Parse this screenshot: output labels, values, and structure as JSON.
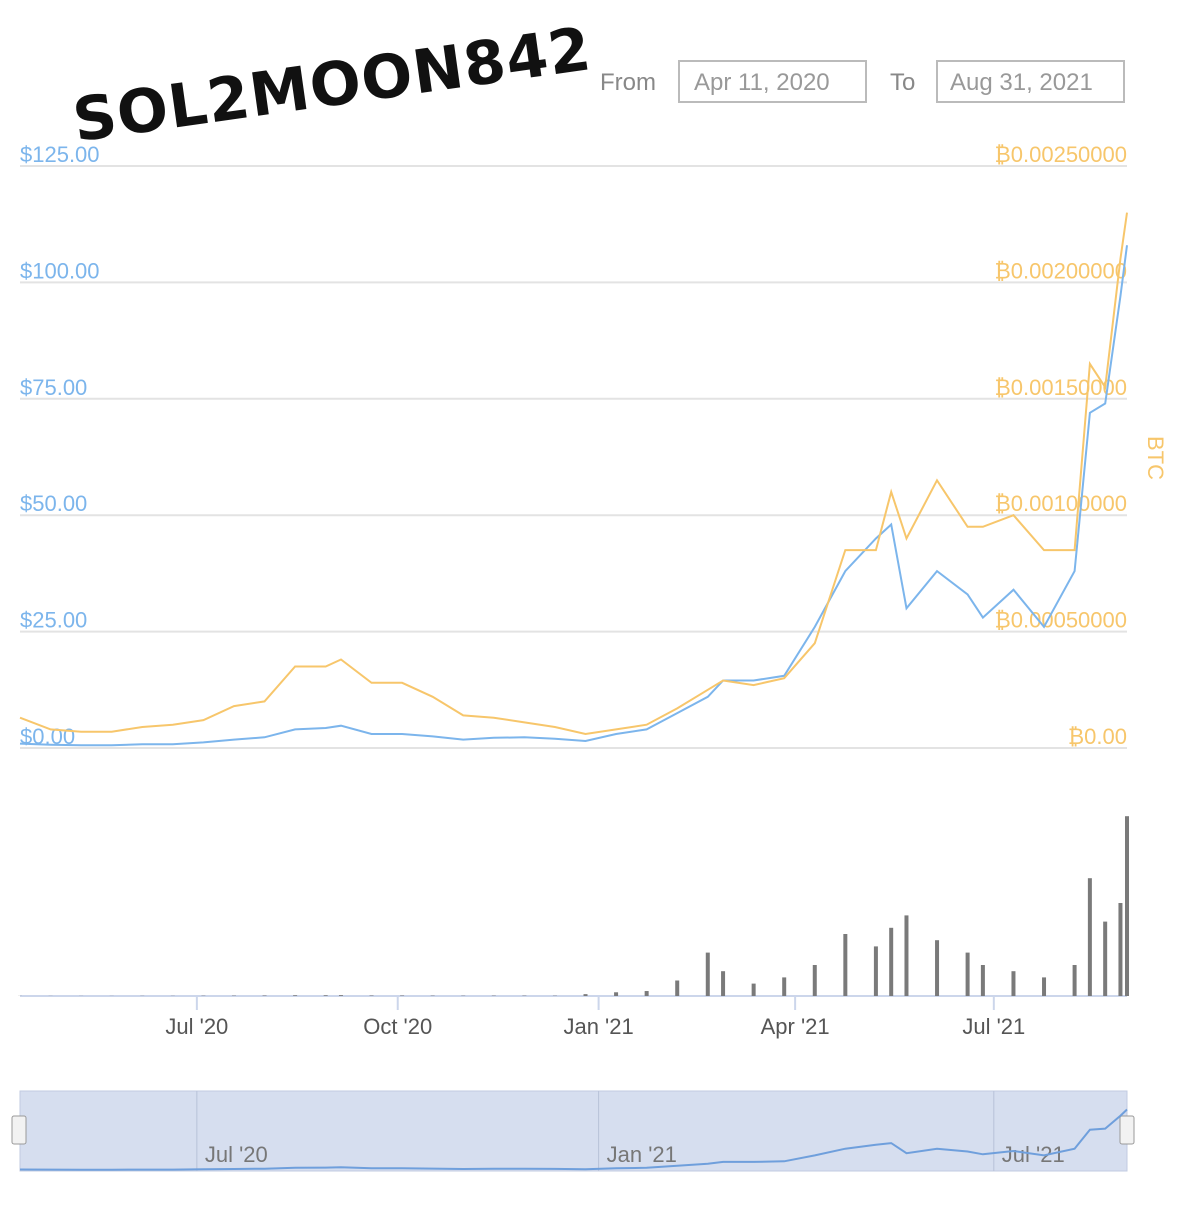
{
  "watermark": "SOL2MOON842",
  "controls": {
    "from_label": "From",
    "from_value": "Apr 11, 2020",
    "to_label": "To",
    "to_value": "Aug 31, 2021"
  },
  "chart_data": {
    "type": "line",
    "x": [
      "2020-04-11",
      "2020-04-25",
      "2020-05-09",
      "2020-05-23",
      "2020-06-06",
      "2020-06-20",
      "2020-07-04",
      "2020-07-18",
      "2020-08-01",
      "2020-08-15",
      "2020-08-29",
      "2020-09-05",
      "2020-09-19",
      "2020-10-03",
      "2020-10-17",
      "2020-10-31",
      "2020-11-14",
      "2020-11-28",
      "2020-12-12",
      "2020-12-26",
      "2021-01-09",
      "2021-01-23",
      "2021-02-06",
      "2021-02-20",
      "2021-02-27",
      "2021-03-13",
      "2021-03-27",
      "2021-04-10",
      "2021-04-24",
      "2021-05-08",
      "2021-05-15",
      "2021-05-22",
      "2021-06-05",
      "2021-06-19",
      "2021-06-26",
      "2021-07-10",
      "2021-07-24",
      "2021-08-07",
      "2021-08-14",
      "2021-08-21",
      "2021-08-28",
      "2021-08-31"
    ],
    "xlim": [
      "2020-04-11",
      "2021-08-31"
    ],
    "xticks": [
      {
        "value": "2020-07-01",
        "label": "Jul '20"
      },
      {
        "value": "2020-10-01",
        "label": "Oct '20"
      },
      {
        "value": "2021-01-01",
        "label": "Jan '21"
      },
      {
        "value": "2021-04-01",
        "label": "Apr '21"
      },
      {
        "value": "2021-07-01",
        "label": "Jul '21"
      }
    ],
    "ylim": [
      0,
      125
    ],
    "yticks": [
      {
        "value": 0,
        "label": "$0.00"
      },
      {
        "value": 25,
        "label": "$25.00"
      },
      {
        "value": 50,
        "label": "$50.00"
      },
      {
        "value": 75,
        "label": "$75.00"
      },
      {
        "value": 100,
        "label": "$100.00"
      },
      {
        "value": 125,
        "label": "$125.00"
      }
    ],
    "y2_label": "BTC",
    "y2lim": [
      0,
      0.0025
    ],
    "y2ticks": [
      {
        "value": 0,
        "label": "₿0.00"
      },
      {
        "value": 0.0005,
        "label": "₿0.00050000"
      },
      {
        "value": 0.001,
        "label": "₿0.00100000"
      },
      {
        "value": 0.0015,
        "label": "₿0.00150000"
      },
      {
        "value": 0.002,
        "label": "₿0.00200000"
      },
      {
        "value": 0.0025,
        "label": "₿0.00250000"
      }
    ],
    "volume_lim": [
      0,
      3000
    ],
    "grid": true,
    "series": [
      {
        "color": "#7cb5ec",
        "values": [
          0.95,
          0.7,
          0.6,
          0.6,
          0.8,
          0.8,
          1.2,
          1.8,
          2.3,
          4.0,
          4.3,
          4.8,
          3.0,
          3.0,
          2.5,
          1.8,
          2.2,
          2.3,
          2.0,
          1.5,
          3.0,
          4.0,
          7.5,
          11.0,
          14.5,
          14.5,
          15.5,
          26.0,
          38.0,
          45.0,
          48.0,
          30.0,
          38.0,
          33.0,
          28.0,
          34.0,
          26.0,
          38.0,
          72.0,
          74.0,
          97.0,
          108.0
        ]
      },
      {
        "color": "#f7c66b",
        "axis": "y2",
        "values": [
          0.00013,
          8e-05,
          7e-05,
          7e-05,
          9e-05,
          0.0001,
          0.00012,
          0.00018,
          0.0002,
          0.00035,
          0.00035,
          0.00038,
          0.00028,
          0.00028,
          0.00022,
          0.00014,
          0.00013,
          0.00011,
          9e-05,
          6e-05,
          8e-05,
          0.0001,
          0.00017,
          0.00025,
          0.00029,
          0.00027,
          0.0003,
          0.00045,
          0.00085,
          0.00085,
          0.0011,
          0.0009,
          0.00115,
          0.00095,
          0.00095,
          0.001,
          0.00085,
          0.00085,
          0.00165,
          0.00155,
          0.0021,
          0.0023
        ]
      },
      {
        "color": "#7a7a7a",
        "type": "bar",
        "axis": "volume",
        "values": [
          2,
          2,
          2,
          2,
          3,
          3,
          5,
          6,
          8,
          12,
          12,
          14,
          8,
          8,
          6,
          5,
          6,
          6,
          5,
          30,
          60,
          80,
          250,
          700,
          400,
          200,
          300,
          500,
          1000,
          800,
          1100,
          1300,
          900,
          700,
          500,
          400,
          300,
          500,
          1900,
          1200,
          1500,
          2900
        ]
      }
    ],
    "navigator": {
      "xticks": [
        {
          "value": "2020-07-01",
          "label": "Jul '20"
        },
        {
          "value": "2021-01-01",
          "label": "Jan '21"
        },
        {
          "value": "2021-07-01",
          "label": "Jul '21"
        }
      ]
    }
  }
}
